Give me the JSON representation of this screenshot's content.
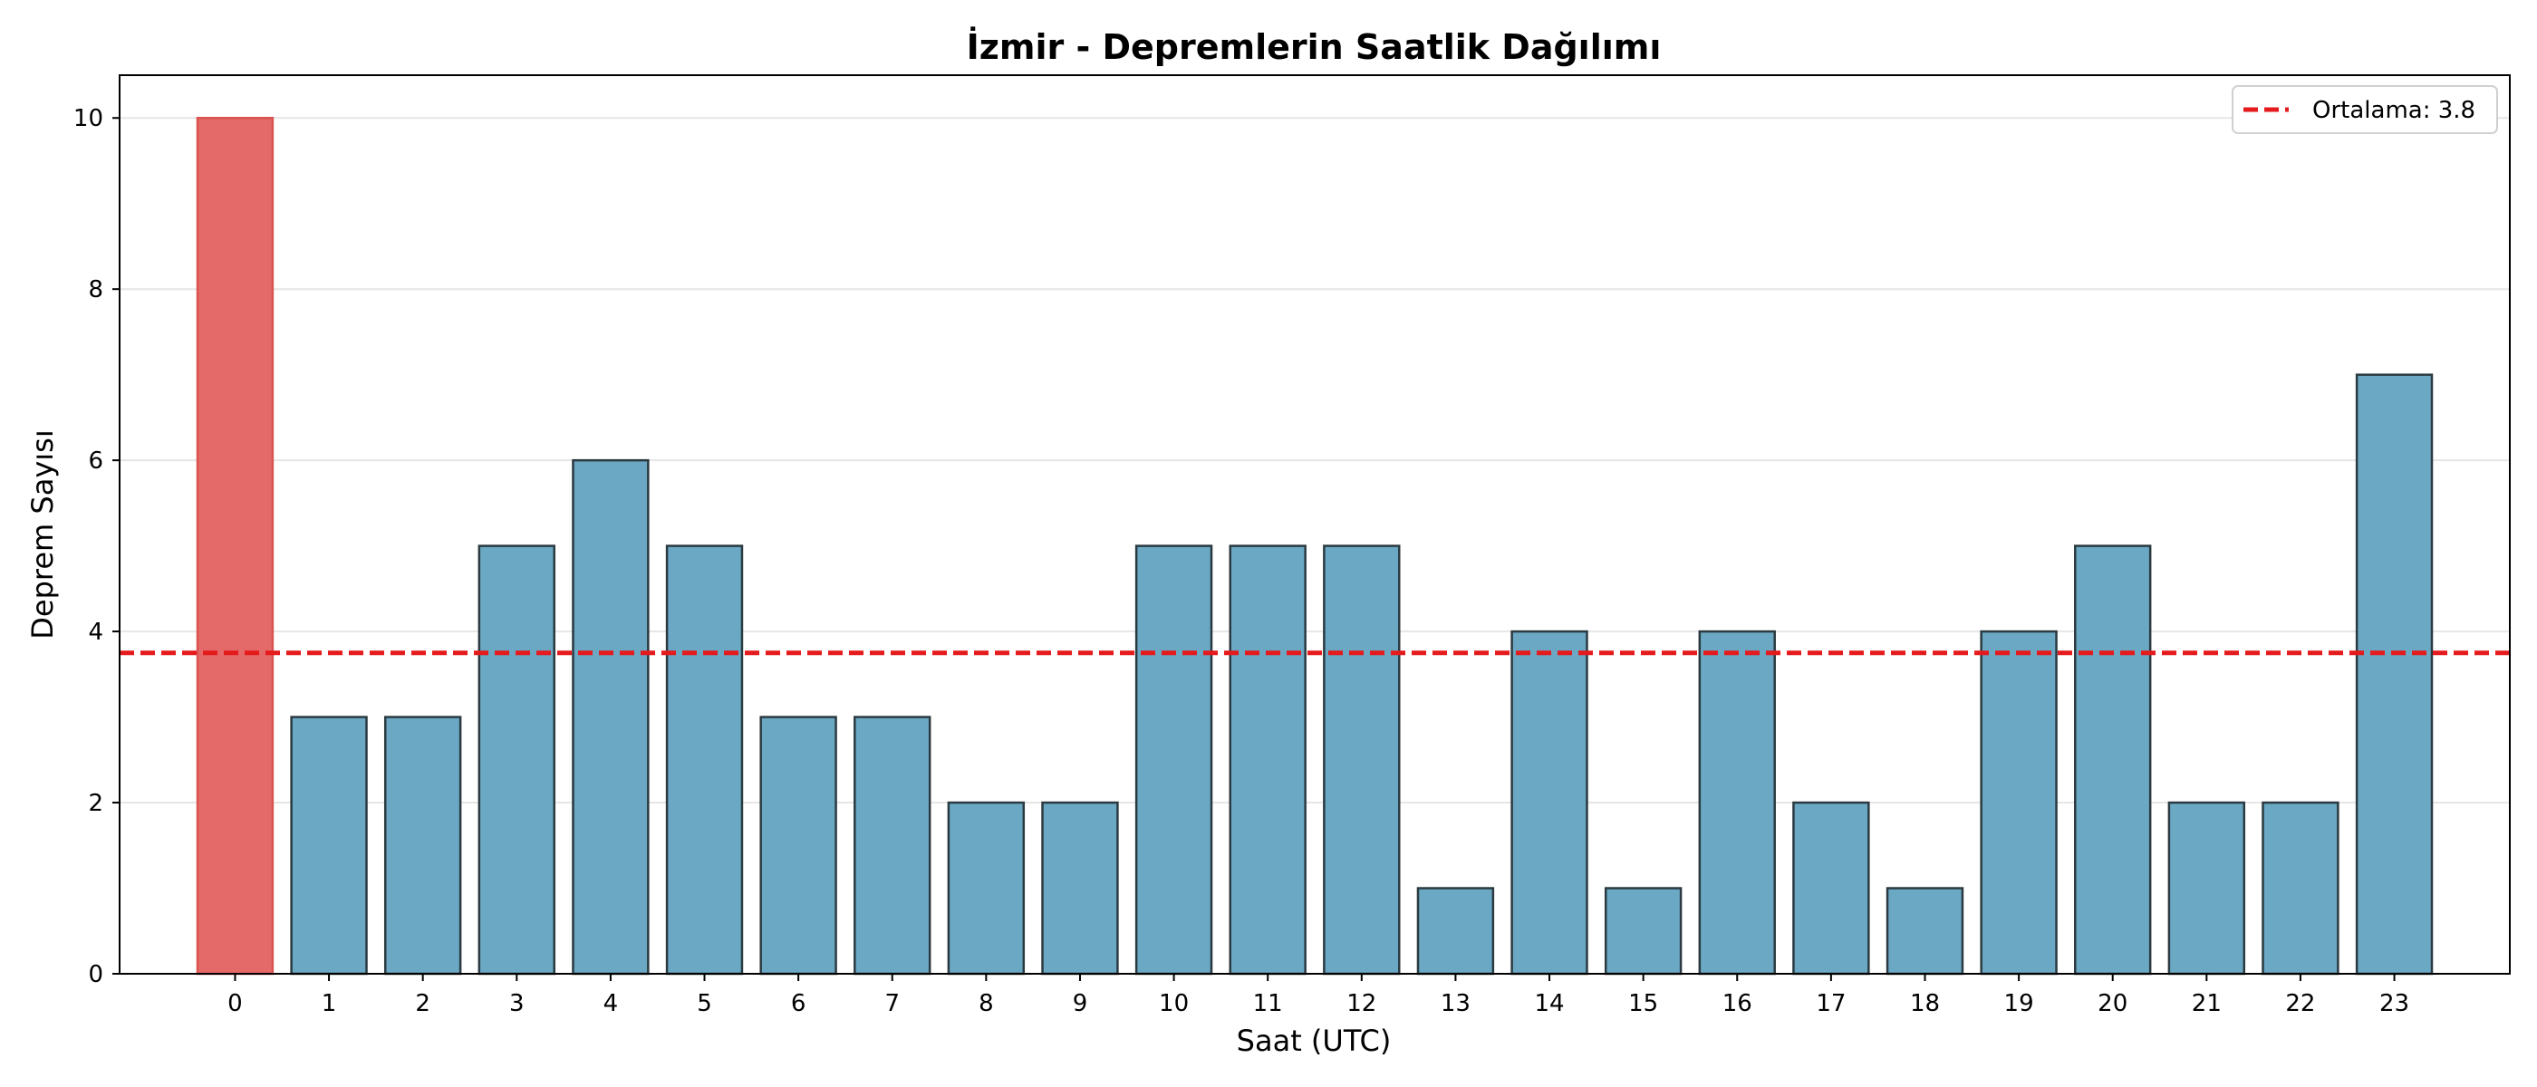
{
  "chart_data": {
    "type": "bar",
    "title": "İzmir - Depremlerin Saatlik Dağılımı",
    "xlabel": "Saat (UTC)",
    "ylabel": "Deprem Sayısı",
    "categories": [
      "0",
      "1",
      "2",
      "3",
      "4",
      "5",
      "6",
      "7",
      "8",
      "9",
      "10",
      "11",
      "12",
      "13",
      "14",
      "15",
      "16",
      "17",
      "18",
      "19",
      "20",
      "21",
      "22",
      "23"
    ],
    "values": [
      10,
      3,
      3,
      5,
      6,
      5,
      3,
      3,
      2,
      2,
      5,
      5,
      5,
      1,
      4,
      1,
      4,
      2,
      1,
      4,
      5,
      2,
      2,
      7
    ],
    "highlight_index": 0,
    "ylim": [
      0,
      10.5
    ],
    "yticks": [
      0,
      2,
      4,
      6,
      8,
      10
    ],
    "mean": 3.75,
    "legend": {
      "label": "Ortalama: 3.8",
      "position": "top-right"
    },
    "grid": {
      "y": true,
      "x": false
    },
    "colors": {
      "bar": "#6aa8c4",
      "bar_edge": "#2b3a40",
      "highlight": "#e46a6a",
      "highlight_edge": "#d9534f",
      "mean_line": "#e41a1c",
      "grid": "#e6e6e6"
    }
  }
}
